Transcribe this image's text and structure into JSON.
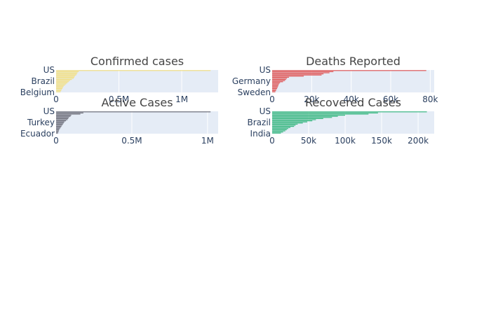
{
  "chart_data": [
    {
      "type": "bar",
      "orientation": "horizontal",
      "title": "Confirmed cases",
      "color": "#f2e085",
      "xlim": [
        0,
        1290000
      ],
      "xticks": [
        {
          "value": 0,
          "label": "0"
        },
        {
          "value": 500000,
          "label": "0.5M"
        },
        {
          "value": 1000000,
          "label": "1M"
        }
      ],
      "ylabels": [
        "US",
        "Brazil",
        "Belgium"
      ],
      "values": [
        1230000,
        180000,
        170000,
        165000,
        160000,
        150000,
        145000,
        140000,
        125000,
        110000,
        100000,
        90000,
        80000,
        70000,
        60000,
        55000,
        50000,
        45000,
        40000,
        35000
      ]
    },
    {
      "type": "bar",
      "orientation": "horizontal",
      "title": "Deaths Reported",
      "color": "#e05a5a",
      "xlim": [
        0,
        82000
      ],
      "xticks": [
        {
          "value": 0,
          "label": "0"
        },
        {
          "value": 20000,
          "label": "20k"
        },
        {
          "value": 40000,
          "label": "40k"
        },
        {
          "value": 60000,
          "label": "60k"
        },
        {
          "value": 80000,
          "label": "80k"
        }
      ],
      "ylabels": [
        "US",
        "Germany",
        "Sweden"
      ],
      "values": [
        78000,
        31000,
        29000,
        26000,
        25000,
        16000,
        8500,
        7500,
        7000,
        6500,
        5500,
        4000,
        3500,
        3200,
        3000,
        2800,
        2500,
        2200,
        1900,
        1600
      ]
    },
    {
      "type": "bar",
      "orientation": "horizontal",
      "title": "Active Cases",
      "color": "#6e6f7a",
      "xlim": [
        0,
        1070000
      ],
      "xticks": [
        {
          "value": 0,
          "label": "0"
        },
        {
          "value": 500000,
          "label": "0.5M"
        },
        {
          "value": 1000000,
          "label": "1M"
        }
      ],
      "ylabels": [
        "US",
        "Turkey",
        "Ecuador"
      ],
      "values": [
        1020000,
        180000,
        160000,
        100000,
        95000,
        85000,
        80000,
        75000,
        65000,
        55000,
        50000,
        45000,
        40000,
        35000,
        30000,
        25000,
        20000,
        18000,
        15000,
        12000
      ]
    },
    {
      "type": "bar",
      "orientation": "horizontal",
      "title": "Recovered Cases",
      "color": "#3cb983",
      "xlim": [
        0,
        222000
      ],
      "xticks": [
        {
          "value": 0,
          "label": "0"
        },
        {
          "value": 50000,
          "label": "50k"
        },
        {
          "value": 100000,
          "label": "100k"
        },
        {
          "value": 150000,
          "label": "150k"
        },
        {
          "value": 200000,
          "label": "200k"
        }
      ],
      "ylabels": [
        "US",
        "Brazil",
        "India"
      ],
      "values": [
        212000,
        145000,
        132000,
        100000,
        90000,
        82000,
        70000,
        60000,
        55000,
        48000,
        42000,
        35000,
        32000,
        30000,
        25000,
        22000,
        20000,
        18000,
        15000,
        12000
      ]
    }
  ]
}
